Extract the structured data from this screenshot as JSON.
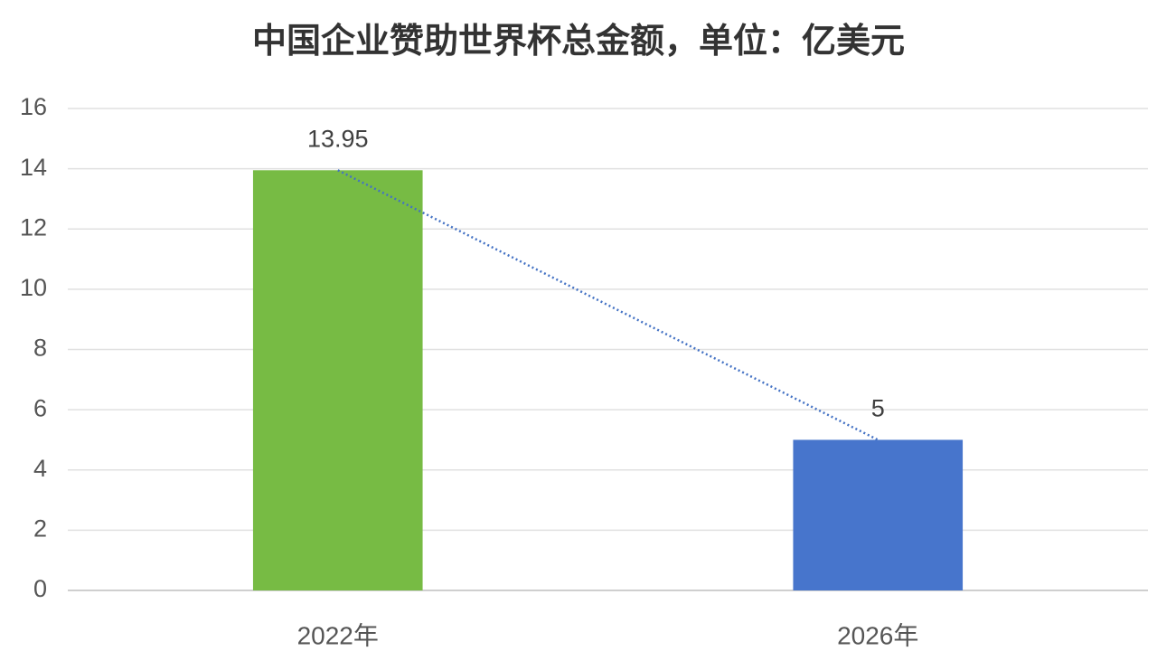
{
  "chart_data": {
    "type": "bar",
    "title": "中国企业赞助世界杯总金额，单位：亿美元",
    "categories": [
      "2022年",
      "2026年"
    ],
    "values": [
      13.95,
      5
    ],
    "colors": [
      "#77bb44",
      "#4775cc"
    ],
    "trendline_color": "#4472c4",
    "ylim": [
      0,
      16
    ],
    "yticks": [
      0,
      2,
      4,
      6,
      8,
      10,
      12,
      14,
      16
    ],
    "grid": true
  }
}
